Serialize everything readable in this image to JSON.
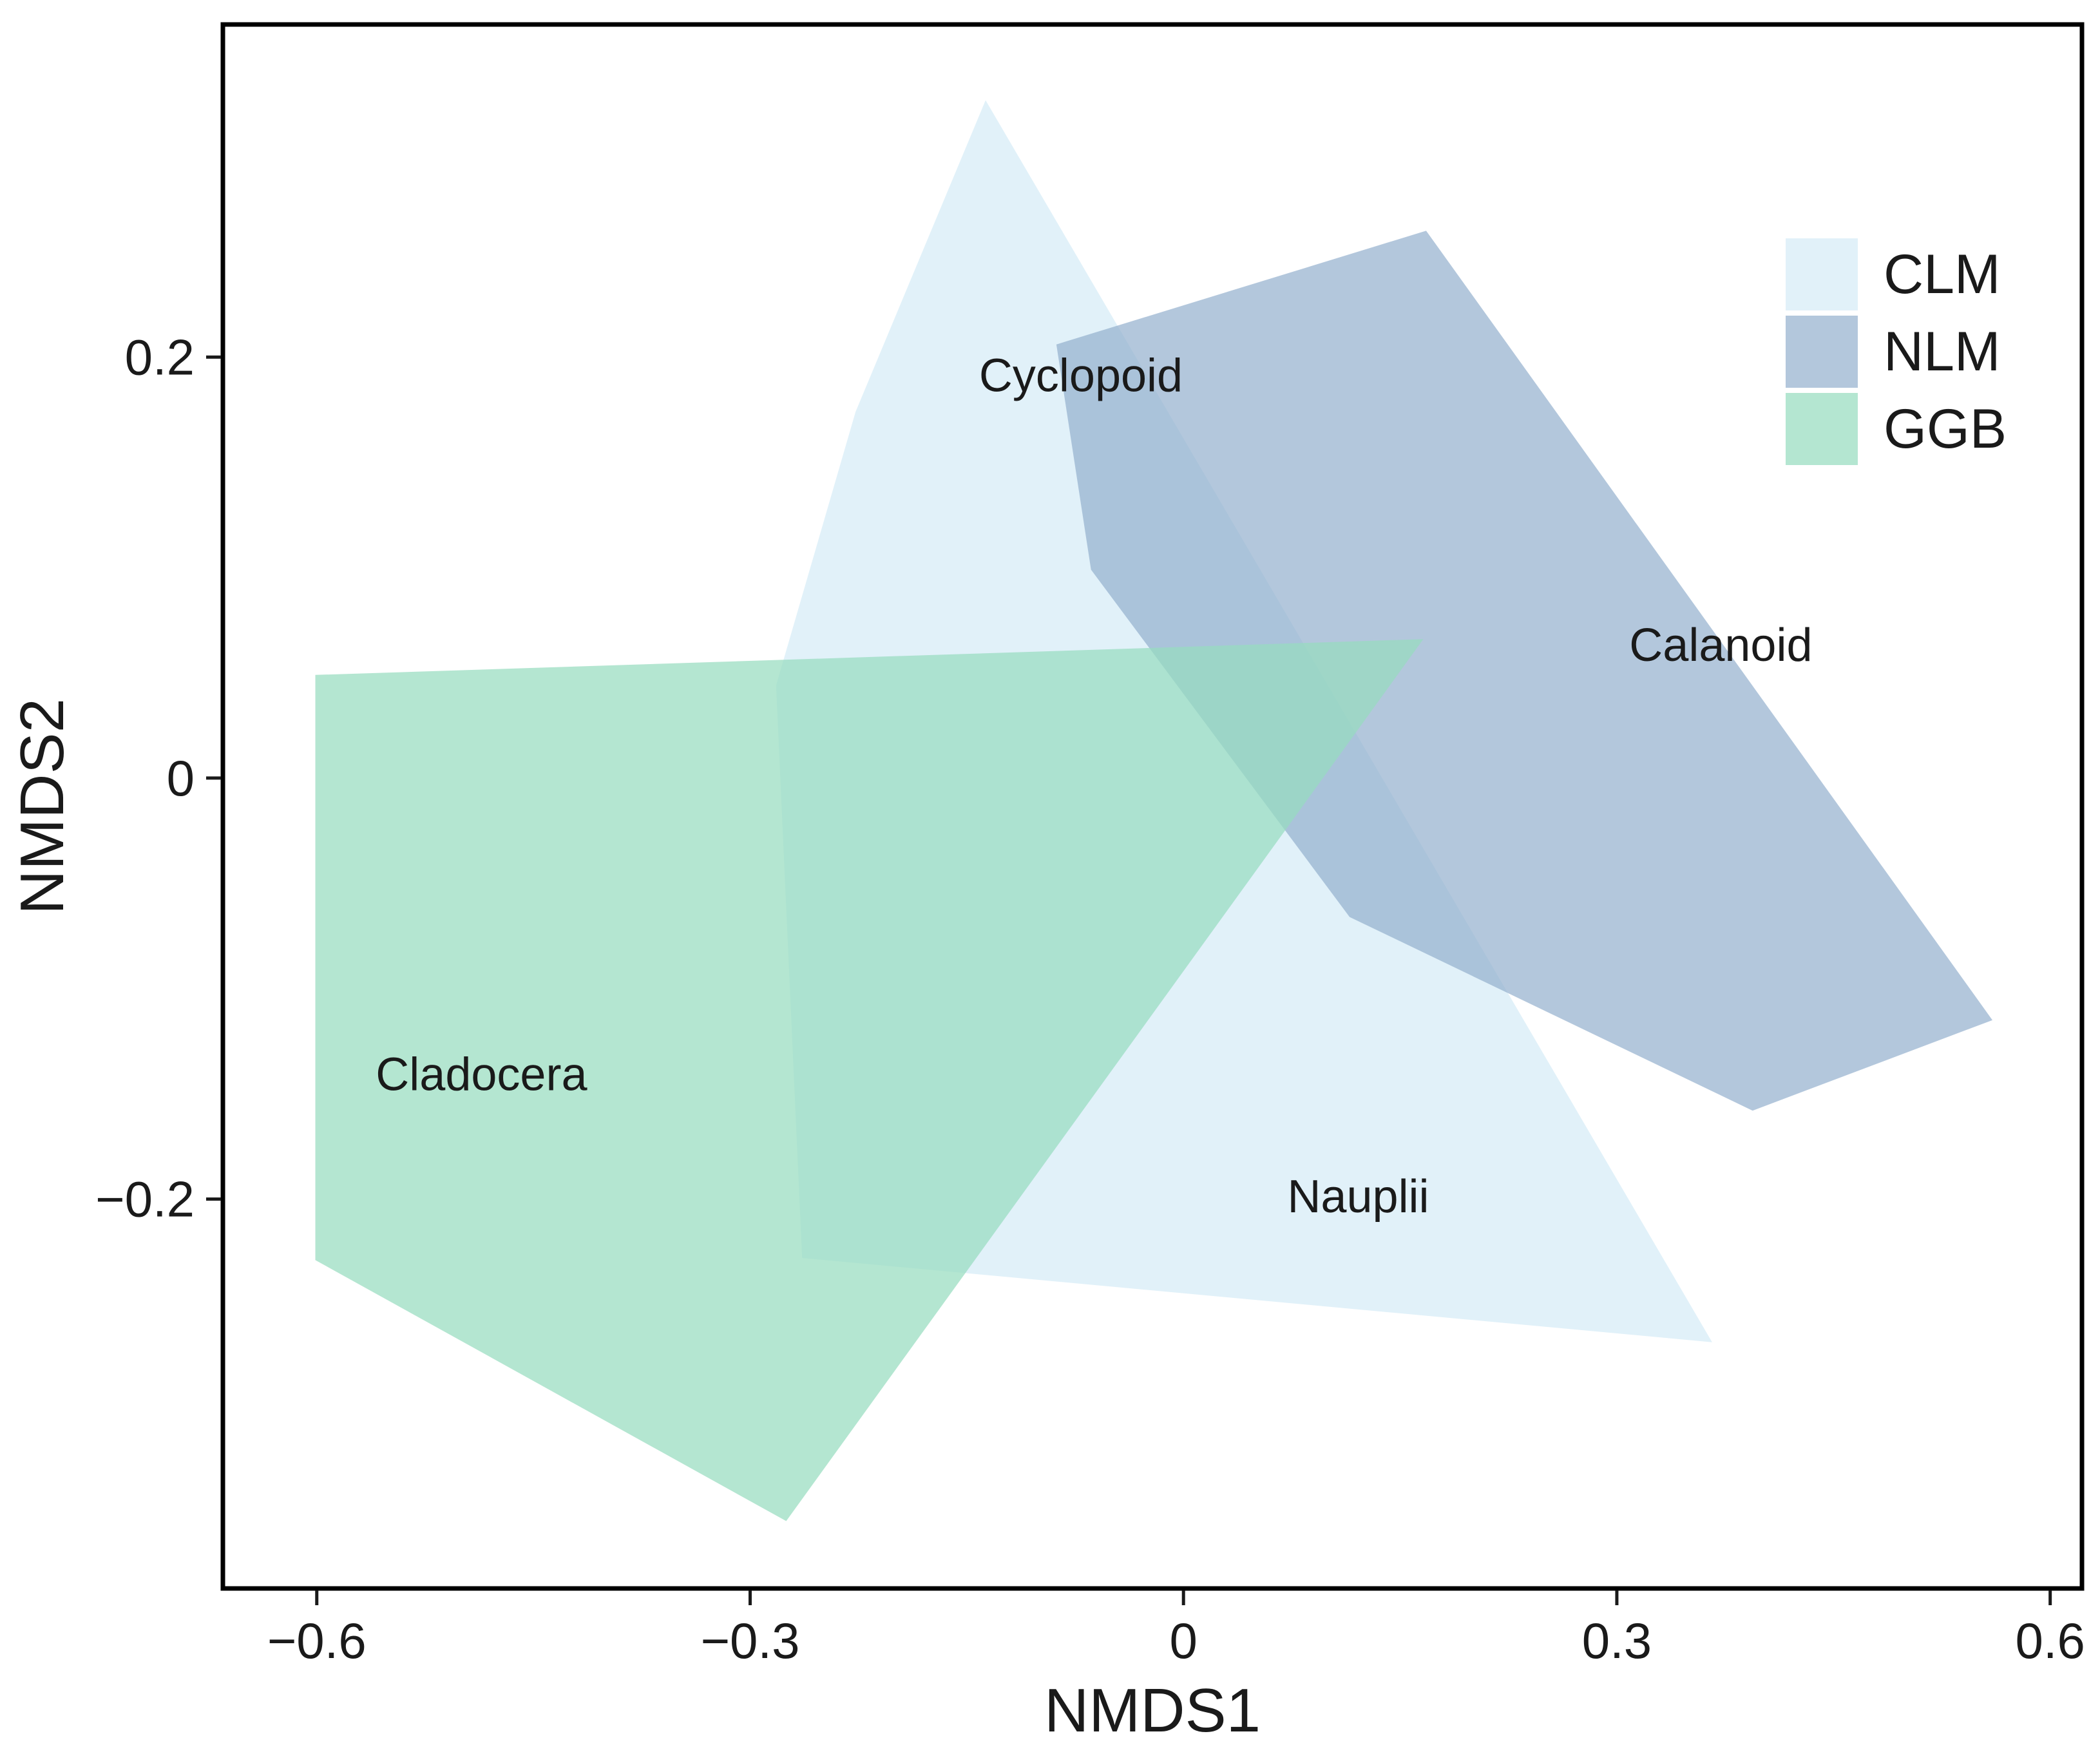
{
  "chart_data": {
    "type": "scatter",
    "subtype": "nmds-convex-hull",
    "title": "",
    "xlabel": "NMDS1",
    "ylabel": "NMDS2",
    "xlim": [
      -0.665,
      0.622
    ],
    "ylim": [
      -0.385,
      0.358
    ],
    "x_ticks": [
      {
        "value": -0.6,
        "label": "−0.6"
      },
      {
        "value": -0.3,
        "label": "−0.3"
      },
      {
        "value": 0,
        "label": "0"
      },
      {
        "value": 0.3,
        "label": "0.3"
      },
      {
        "value": 0.6,
        "label": "0.6"
      }
    ],
    "y_ticks": [
      {
        "value": 0.2,
        "label": "0.2"
      },
      {
        "value": 0,
        "label": "0"
      },
      {
        "value": -0.2,
        "label": "−0.2"
      }
    ],
    "grid": false,
    "legend_position": "top-right",
    "series": [
      {
        "name": "CLM",
        "color": "#d9eef8",
        "opacity": 0.8,
        "points": [
          [
            -0.137,
            0.322
          ],
          [
            -0.227,
            0.174
          ],
          [
            -0.282,
            0.044
          ],
          [
            -0.264,
            -0.228
          ],
          [
            0.366,
            -0.268
          ]
        ]
      },
      {
        "name": "NLM",
        "color": "#93afcd",
        "opacity": 0.7,
        "points": [
          [
            0.168,
            0.26
          ],
          [
            -0.088,
            0.206
          ],
          [
            -0.064,
            0.099
          ],
          [
            0.115,
            -0.066
          ],
          [
            0.394,
            -0.158
          ],
          [
            0.56,
            -0.115
          ]
        ]
      },
      {
        "name": "GGB",
        "color": "#97dcbf",
        "opacity": 0.72,
        "points": [
          [
            -0.601,
            0.049
          ],
          [
            0.166,
            0.066
          ],
          [
            -0.275,
            -0.353
          ],
          [
            -0.601,
            -0.229
          ]
        ]
      }
    ],
    "annotations": [
      {
        "text": "Cyclopoid",
        "x": -0.071,
        "y": 0.191
      },
      {
        "text": "Calanoid",
        "x": 0.372,
        "y": 0.063
      },
      {
        "text": "Cladocera",
        "x": -0.486,
        "y": -0.141
      },
      {
        "text": "Nauplii",
        "x": 0.121,
        "y": -0.199
      }
    ]
  }
}
